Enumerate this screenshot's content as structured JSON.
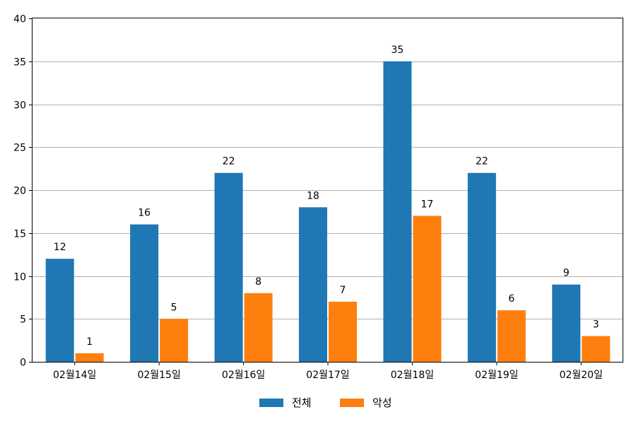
{
  "chart_data": {
    "type": "bar",
    "categories": [
      "02월14일",
      "02월15일",
      "02월16일",
      "02월17일",
      "02월18일",
      "02월19일",
      "02월20일"
    ],
    "series": [
      {
        "name": "전체",
        "color": "#1f77b4",
        "values": [
          12,
          16,
          22,
          18,
          35,
          22,
          9
        ]
      },
      {
        "name": "악성",
        "color": "#ff7f0e",
        "values": [
          1,
          5,
          8,
          7,
          17,
          6,
          3
        ]
      }
    ],
    "title": "",
    "xlabel": "",
    "ylabel": "",
    "ylim": [
      0,
      40
    ],
    "yticks": [
      0,
      5,
      10,
      15,
      20,
      25,
      30,
      35,
      40
    ],
    "grid": "horizontal",
    "legend_position": "bottom-center",
    "data_labels": true
  }
}
